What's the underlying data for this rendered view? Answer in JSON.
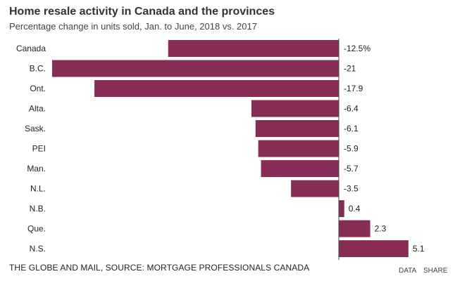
{
  "header": {
    "title": "Home resale activity in Canada and the provinces",
    "subtitle": "Percentage change in units sold, Jan. to June, 2018 vs. 2017"
  },
  "chart_data": {
    "type": "bar",
    "orientation": "horizontal",
    "title": "Home resale activity in Canada and the provinces",
    "subtitle": "Percentage change in units sold, Jan. to June, 2018 vs. 2017",
    "categories": [
      "Canada",
      "B.C.",
      "Ont.",
      "Alta.",
      "Sask.",
      "PEI",
      "Man.",
      "N.L.",
      "N.B.",
      "Que.",
      "N.S."
    ],
    "values": [
      -12.5,
      -21,
      -17.9,
      -6.4,
      -6.1,
      -5.9,
      -5.7,
      -3.5,
      0.4,
      2.3,
      5.1
    ],
    "value_labels": [
      "-12.5%",
      "-21",
      "-17.9",
      "-6.4",
      "-6.1",
      "-5.9",
      "-5.7",
      "-3.5",
      "0.4",
      "2.3",
      "5.1"
    ],
    "xlim": [
      -21,
      5.5
    ],
    "bar_color": "#862c55",
    "axis_color": "#444444"
  },
  "footer": {
    "source": "THE GLOBE AND MAIL, SOURCE: MORTGAGE PROFESSIONALS CANADA",
    "data_label": "DATA",
    "share_label": "SHARE"
  }
}
